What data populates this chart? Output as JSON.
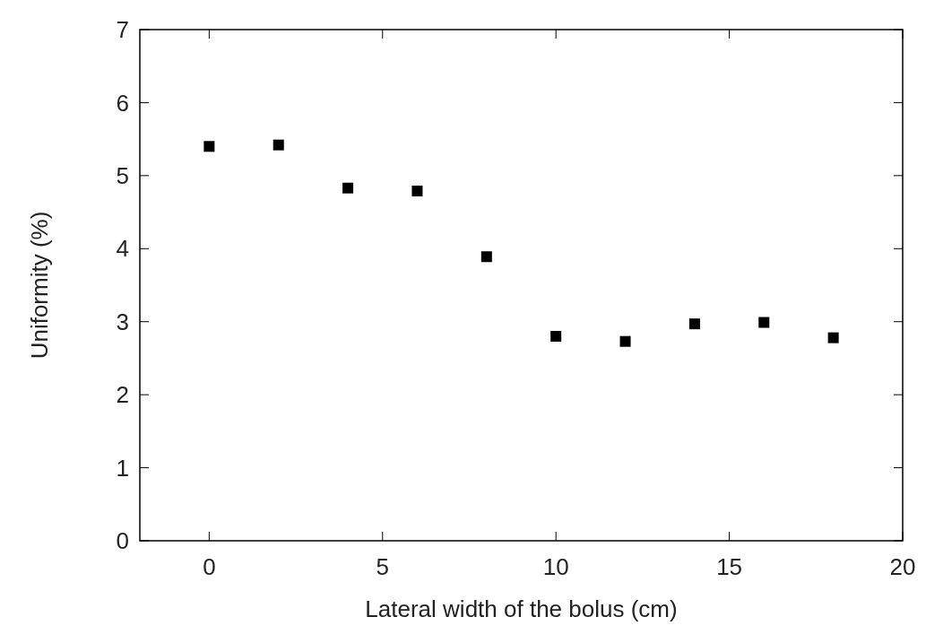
{
  "chart_data": {
    "type": "scatter",
    "xlabel": "Lateral width of the bolus (cm)",
    "ylabel": "Uniformity (%)",
    "x": [
      0,
      2,
      4,
      6,
      8,
      10,
      12,
      14,
      16,
      18
    ],
    "values": [
      5.4,
      5.42,
      4.83,
      4.79,
      3.89,
      2.8,
      2.73,
      2.97,
      2.99,
      2.78
    ],
    "color": "#000000",
    "marker": "square",
    "xlim": [
      -2,
      20
    ],
    "xticks": [
      0,
      5,
      10,
      15,
      20
    ],
    "ylim": [
      0,
      7
    ],
    "yticks": [
      0,
      1,
      2,
      3,
      4,
      5,
      6,
      7
    ],
    "grid": false
  }
}
